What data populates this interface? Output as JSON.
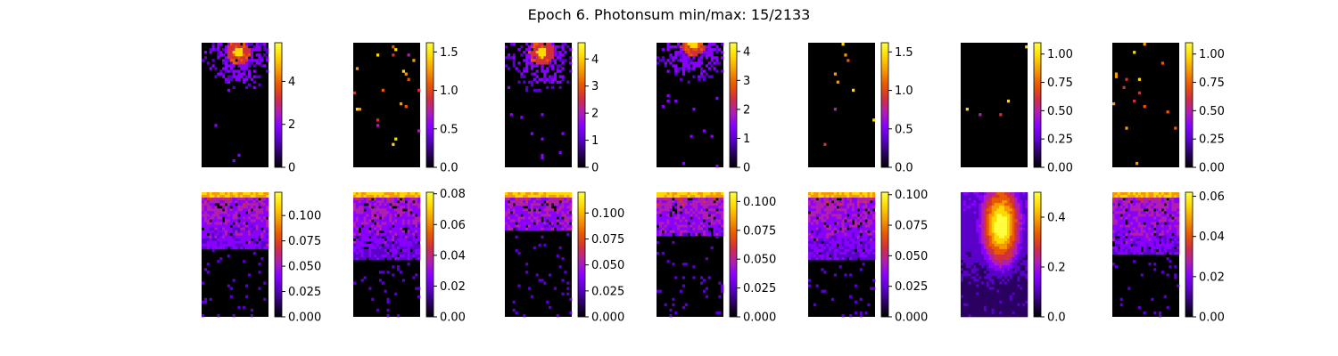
{
  "figure_title": "Epoch 6. Photonsum min/max: 15/2133",
  "colormap": [
    "#000000",
    "#2a0060",
    "#5a00c8",
    "#8a00ff",
    "#b01fb0",
    "#d2303c",
    "#e85a00",
    "#f59a00",
    "#ffd800",
    "#ffff40"
  ],
  "chart_data": [
    {
      "type": "heatmap",
      "row": 1,
      "col": 1,
      "blob": {
        "cx": 0.55,
        "cy": 0.08,
        "r": 0.32
      },
      "density": 0.55,
      "colorbar": {
        "ticks": [
          "0",
          "2",
          "4"
        ],
        "tick_values": [
          0,
          2,
          4
        ],
        "vmin": 0,
        "vmax": 5.8
      }
    },
    {
      "type": "heatmap",
      "row": 1,
      "col": 2,
      "blob": null,
      "density": 0.12,
      "colorbar": {
        "ticks": [
          "0.0",
          "0.5",
          "1.0",
          "1.5"
        ],
        "tick_values": [
          0,
          0.5,
          1.0,
          1.5
        ],
        "vmin": 0,
        "vmax": 1.62
      }
    },
    {
      "type": "heatmap",
      "row": 1,
      "col": 3,
      "blob": {
        "cx": 0.55,
        "cy": 0.08,
        "r": 0.34
      },
      "density": 0.55,
      "colorbar": {
        "ticks": [
          "0",
          "1",
          "2",
          "3",
          "4"
        ],
        "tick_values": [
          0,
          1,
          2,
          3,
          4
        ],
        "vmin": 0,
        "vmax": 4.6
      }
    },
    {
      "type": "heatmap",
      "row": 1,
      "col": 4,
      "blob": {
        "cx": 0.55,
        "cy": 0.0,
        "r": 0.36
      },
      "density": 0.5,
      "colorbar": {
        "ticks": [
          "0",
          "1",
          "2",
          "3",
          "4"
        ],
        "tick_values": [
          0,
          1,
          2,
          3,
          4
        ],
        "vmin": 0,
        "vmax": 4.3
      }
    },
    {
      "type": "heatmap",
      "row": 1,
      "col": 5,
      "blob": null,
      "density": 0.08,
      "colorbar": {
        "ticks": [
          "0.0",
          "0.5",
          "1.0",
          "1.5"
        ],
        "tick_values": [
          0,
          0.5,
          1.0,
          1.5
        ],
        "vmin": 0,
        "vmax": 1.62
      }
    },
    {
      "type": "heatmap",
      "row": 1,
      "col": 6,
      "blob": null,
      "density": 0.03,
      "colorbar": {
        "ticks": [
          "0.00",
          "0.25",
          "0.50",
          "0.75",
          "1.00"
        ],
        "tick_values": [
          0,
          0.25,
          0.5,
          0.75,
          1.0
        ],
        "vmin": 0,
        "vmax": 1.1
      }
    },
    {
      "type": "heatmap",
      "row": 1,
      "col": 7,
      "blob": null,
      "density": 0.1,
      "colorbar": {
        "ticks": [
          "0.00",
          "0.25",
          "0.50",
          "0.75",
          "1.00"
        ],
        "tick_values": [
          0,
          0.25,
          0.5,
          0.75,
          1.0
        ],
        "vmin": 0,
        "vmax": 1.1
      }
    },
    {
      "type": "heatmap",
      "row": 2,
      "col": 1,
      "blob": null,
      "density": 0.45,
      "colorbar": {
        "ticks": [
          "0.000",
          "0.025",
          "0.050",
          "0.075",
          "0.100"
        ],
        "tick_values": [
          0,
          0.025,
          0.05,
          0.075,
          0.1
        ],
        "vmin": 0,
        "vmax": 0.123
      }
    },
    {
      "type": "heatmap",
      "row": 2,
      "col": 2,
      "blob": null,
      "density": 0.55,
      "colorbar": {
        "ticks": [
          "0.00",
          "0.02",
          "0.04",
          "0.06",
          "0.08"
        ],
        "tick_values": [
          0,
          0.02,
          0.04,
          0.06,
          0.08
        ],
        "vmin": 0,
        "vmax": 0.081
      }
    },
    {
      "type": "heatmap",
      "row": 2,
      "col": 3,
      "blob": null,
      "density": 0.3,
      "colorbar": {
        "ticks": [
          "0.000",
          "0.025",
          "0.050",
          "0.075",
          "0.100"
        ],
        "tick_values": [
          0,
          0.025,
          0.05,
          0.075,
          0.1
        ],
        "vmin": 0,
        "vmax": 0.12
      }
    },
    {
      "type": "heatmap",
      "row": 2,
      "col": 4,
      "blob": null,
      "density": 0.35,
      "colorbar": {
        "ticks": [
          "0.000",
          "0.025",
          "0.050",
          "0.075",
          "0.100"
        ],
        "tick_values": [
          0,
          0.025,
          0.05,
          0.075,
          0.1
        ],
        "vmin": 0,
        "vmax": 0.108
      }
    },
    {
      "type": "heatmap",
      "row": 2,
      "col": 5,
      "blob": null,
      "density": 0.55,
      "colorbar": {
        "ticks": [
          "0.000",
          "0.025",
          "0.050",
          "0.075",
          "0.100"
        ],
        "tick_values": [
          0,
          0.025,
          0.05,
          0.075,
          0.1
        ],
        "vmin": 0,
        "vmax": 0.102
      }
    },
    {
      "type": "heatmap",
      "row": 2,
      "col": 6,
      "blob": {
        "cx": 0.6,
        "cy": 0.28,
        "r": 0.25
      },
      "density": 1.0,
      "colorbar": {
        "ticks": [
          "0.0",
          "0.2",
          "0.4"
        ],
        "tick_values": [
          0,
          0.2,
          0.4
        ],
        "vmin": 0,
        "vmax": 0.5
      }
    },
    {
      "type": "heatmap",
      "row": 2,
      "col": 7,
      "blob": null,
      "density": 0.5,
      "colorbar": {
        "ticks": [
          "0.00",
          "0.02",
          "0.04",
          "0.06"
        ],
        "tick_values": [
          0,
          0.02,
          0.04,
          0.06
        ],
        "vmin": 0,
        "vmax": 0.062
      }
    }
  ]
}
